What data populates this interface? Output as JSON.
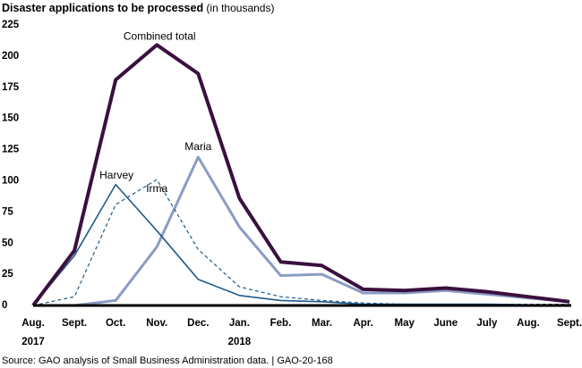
{
  "chart_data": {
    "type": "line",
    "title": "Disaster applications to be processed",
    "title_unit": "(in thousands)",
    "source": "Source: GAO analysis of Small Business Administration data.  |  GAO-20-168",
    "categories": [
      "Aug.",
      "Sept.",
      "Oct.",
      "Nov.",
      "Dec.",
      "Jan.",
      "Feb.",
      "Mar.",
      "Apr.",
      "May",
      "June",
      "July",
      "Aug.",
      "Sept."
    ],
    "years": [
      "2017",
      null,
      null,
      null,
      null,
      "2018",
      null,
      null,
      null,
      null,
      null,
      null,
      null,
      null
    ],
    "ylim": [
      0,
      225
    ],
    "yticks": [
      0,
      25,
      50,
      75,
      100,
      125,
      150,
      175,
      200,
      225
    ],
    "grid": false,
    "series": [
      {
        "name": "Combined total",
        "color": "#3b0f3f",
        "values": [
          0,
          44,
          181,
          209,
          186,
          86,
          35,
          32,
          13,
          12,
          14,
          11,
          7,
          3
        ]
      },
      {
        "name": "Harvey",
        "color": "#1f5a8a",
        "values": [
          0,
          40,
          97,
          60,
          21,
          8,
          4,
          3,
          1,
          1,
          1,
          1,
          0.5,
          0.5
        ]
      },
      {
        "name": "Irma",
        "color": "#1f5a8a",
        "dashed": true,
        "values": [
          0,
          7,
          81,
          101,
          45,
          15,
          7,
          4,
          2,
          1,
          1,
          1,
          1,
          1
        ]
      },
      {
        "name": "Maria",
        "color": "#8a9cc4",
        "values": [
          0,
          0,
          4,
          47,
          119,
          63,
          24,
          25,
          10,
          10,
          12,
          9,
          6,
          3
        ]
      }
    ]
  }
}
